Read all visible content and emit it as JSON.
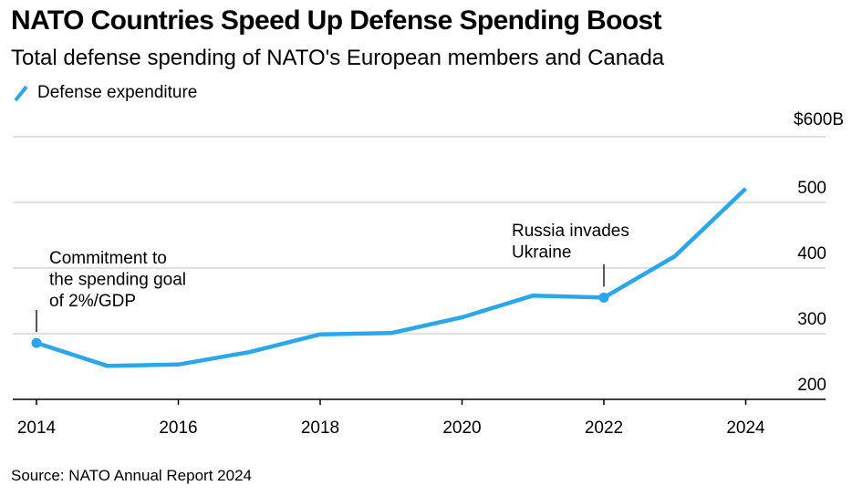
{
  "chart_data": {
    "type": "line",
    "title": "NATO Countries Speed Up Defense Spending Boost",
    "subtitle": "Total defense spending of NATO's European members and Canada",
    "source": "Source: NATO Annual Report 2024",
    "xlabel": "",
    "ylabel": "",
    "x": [
      2014,
      2015,
      2016,
      2017,
      2018,
      2019,
      2020,
      2021,
      2022,
      2023,
      2024
    ],
    "series": [
      {
        "name": "Defense expenditure",
        "color": "#2AA7EA",
        "values": [
          286,
          251,
          253,
          272,
          299,
          301,
          325,
          358,
          355,
          418,
          521
        ]
      }
    ],
    "xlim": [
      2014,
      2025.2
    ],
    "ylim": [
      200,
      600
    ],
    "x_ticks": [
      "2014",
      "2016",
      "2018",
      "2020",
      "2022",
      "2024"
    ],
    "x_tick_values": [
      2014,
      2016,
      2018,
      2020,
      2022,
      2024
    ],
    "y_ticks": [
      "$600B",
      "500",
      "400",
      "300",
      "200"
    ],
    "y_tick_values": [
      600,
      500,
      400,
      300,
      200
    ],
    "grid": true,
    "legend_position": "top-left",
    "markers": [
      {
        "name": "marker-2014",
        "x": 2014
      },
      {
        "name": "marker-2022",
        "x": 2022
      }
    ],
    "annotations": [
      {
        "name": "annotation-commitment",
        "x": 2014,
        "lines": [
          "Commitment to",
          "the spending goal",
          "of 2%/GDP"
        ]
      },
      {
        "name": "annotation-russia",
        "x": 2022,
        "lines": [
          "Russia invades",
          "Ukraine"
        ]
      }
    ]
  }
}
